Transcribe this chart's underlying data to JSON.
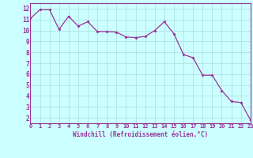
{
  "x": [
    0,
    1,
    2,
    3,
    4,
    5,
    6,
    7,
    8,
    9,
    10,
    11,
    12,
    13,
    14,
    15,
    16,
    17,
    18,
    19,
    20,
    21,
    22,
    23
  ],
  "y": [
    11.1,
    11.9,
    11.9,
    10.1,
    11.3,
    10.4,
    10.8,
    9.9,
    9.9,
    9.85,
    9.4,
    9.35,
    9.45,
    10.0,
    10.8,
    9.7,
    7.8,
    7.5,
    5.9,
    5.9,
    4.5,
    3.5,
    3.4,
    1.8
  ],
  "line_color": "#993399",
  "marker": "D",
  "marker_size": 2.0,
  "bg_color": "#ccffff",
  "grid_color": "#aadddd",
  "xlabel": "Windchill (Refroidissement éolien,°C)",
  "xlabel_color": "#993399",
  "tick_color": "#993399",
  "ylim": [
    1.5,
    12.5
  ],
  "xlim": [
    0,
    23
  ],
  "yticks": [
    2,
    3,
    4,
    5,
    6,
    7,
    8,
    9,
    10,
    11,
    12
  ],
  "xticks": [
    0,
    1,
    2,
    3,
    4,
    5,
    6,
    7,
    8,
    9,
    10,
    11,
    12,
    13,
    14,
    15,
    16,
    17,
    18,
    19,
    20,
    21,
    22,
    23
  ]
}
